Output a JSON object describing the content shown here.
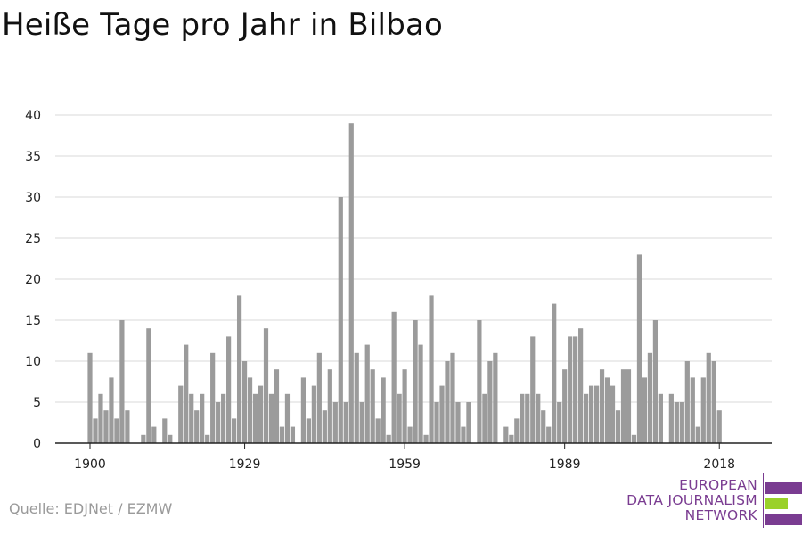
{
  "title": "Heiße Tage pro Jahr in Bilbao",
  "source": "Quelle: EDJNet / EZMW",
  "logo": {
    "lines": [
      "EUROPEAN",
      "DATA JOURNALISM",
      "NETWORK"
    ],
    "colors": {
      "purple": "#7a3c91",
      "green": "#9ad12a"
    }
  },
  "chart_data": {
    "type": "bar",
    "title": "Heiße Tage pro Jahr in Bilbao",
    "xlabel": "",
    "ylabel": "",
    "x_ticks": [
      1900,
      1929,
      1959,
      1989,
      2018
    ],
    "y_ticks": [
      0,
      5,
      10,
      15,
      20,
      25,
      30,
      35,
      40
    ],
    "ylim": [
      0,
      40
    ],
    "xlim": [
      1900,
      2018
    ],
    "grid": true,
    "bar_color": "#9b9b9b",
    "x": [
      1900,
      1901,
      1902,
      1903,
      1904,
      1905,
      1906,
      1907,
      1908,
      1909,
      1910,
      1911,
      1912,
      1913,
      1914,
      1915,
      1916,
      1917,
      1918,
      1919,
      1920,
      1921,
      1922,
      1923,
      1924,
      1925,
      1926,
      1927,
      1928,
      1929,
      1930,
      1931,
      1932,
      1933,
      1934,
      1935,
      1936,
      1937,
      1938,
      1939,
      1940,
      1941,
      1942,
      1943,
      1944,
      1945,
      1946,
      1947,
      1948,
      1949,
      1950,
      1951,
      1952,
      1953,
      1954,
      1955,
      1956,
      1957,
      1958,
      1959,
      1960,
      1961,
      1962,
      1963,
      1964,
      1965,
      1966,
      1967,
      1968,
      1969,
      1970,
      1971,
      1972,
      1973,
      1974,
      1975,
      1976,
      1977,
      1978,
      1979,
      1980,
      1981,
      1982,
      1983,
      1984,
      1985,
      1986,
      1987,
      1988,
      1989,
      1990,
      1991,
      1992,
      1993,
      1994,
      1995,
      1996,
      1997,
      1998,
      1999,
      2000,
      2001,
      2002,
      2003,
      2004,
      2005,
      2006,
      2007,
      2008,
      2009,
      2010,
      2011,
      2012,
      2013,
      2014,
      2015,
      2016,
      2017,
      2018
    ],
    "values": [
      11,
      3,
      6,
      4,
      8,
      3,
      15,
      4,
      0,
      0,
      1,
      14,
      2,
      0,
      3,
      1,
      0,
      7,
      12,
      6,
      4,
      6,
      1,
      11,
      5,
      6,
      13,
      3,
      18,
      10,
      8,
      6,
      7,
      14,
      6,
      9,
      2,
      6,
      2,
      0,
      8,
      3,
      7,
      11,
      4,
      9,
      5,
      30,
      5,
      39,
      11,
      5,
      12,
      9,
      3,
      8,
      1,
      16,
      6,
      9,
      2,
      15,
      12,
      1,
      18,
      5,
      7,
      10,
      11,
      5,
      2,
      5,
      0,
      15,
      6,
      10,
      11,
      0,
      2,
      1,
      3,
      6,
      6,
      13,
      6,
      4,
      2,
      17,
      5,
      9,
      13,
      13,
      14,
      6,
      7,
      7,
      9,
      8,
      7,
      4,
      9,
      9,
      1,
      23,
      8,
      11,
      15,
      6,
      0,
      6,
      5,
      5,
      10,
      8,
      2,
      8,
      11,
      10,
      4
    ]
  }
}
